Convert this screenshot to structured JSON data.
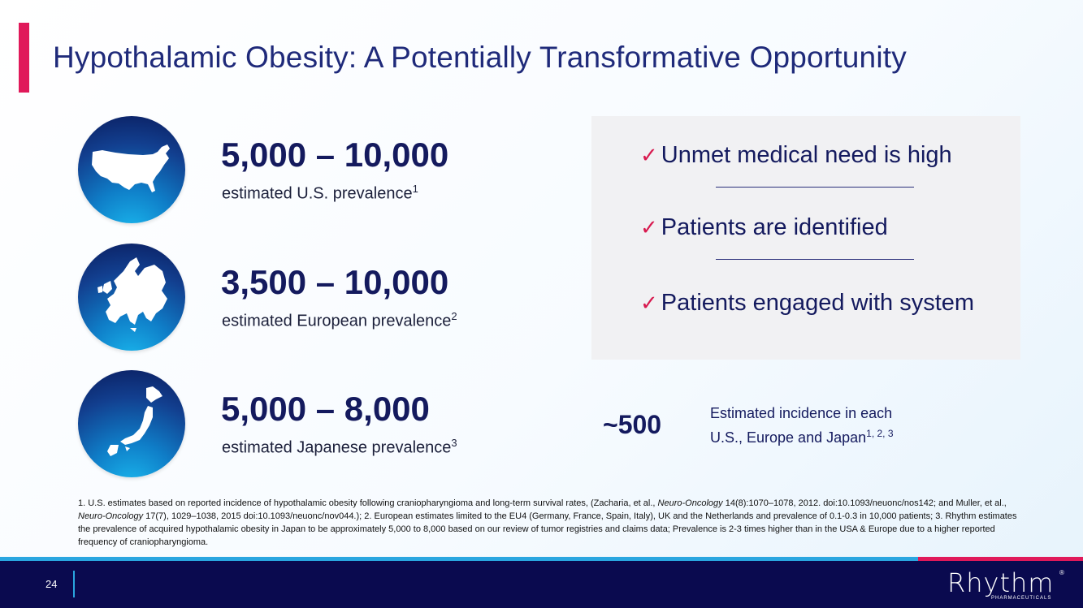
{
  "header": {
    "title": "Hypothalamic Obesity: A Potentially Transformative Opportunity"
  },
  "stats": [
    {
      "value": "5,000 – 10,000",
      "label": "estimated U.S. prevalence",
      "sup": "1",
      "icon": "us-map-icon"
    },
    {
      "value": "3,500 – 10,000",
      "label": "estimated European prevalence",
      "sup": "2",
      "icon": "europe-map-icon"
    },
    {
      "value": "5,000 – 8,000",
      "label": "estimated Japanese prevalence",
      "sup": "3",
      "icon": "japan-map-icon"
    }
  ],
  "checklist": {
    "check_symbol": "✓",
    "items": [
      "Unmet medical need is high",
      "Patients are identified",
      "Patients engaged with system"
    ]
  },
  "incidence": {
    "value": "~500",
    "label_line1": "Estimated incidence in each",
    "label_line2": "U.S., Europe and Japan",
    "sup": "1, 2, 3"
  },
  "footnote": {
    "part1": "1. U.S. estimates based on reported incidence of hypothalamic obesity following craniopharyngioma and long-term survival rates, (Zacharia, et al.,",
    "journal1": "Neuro-Oncology",
    "part2": "14(8):1070–1078, 2012. doi:10.1093/neuonc/nos142; and Muller, et al.,",
    "journal2": "Neuro-Oncology",
    "part3": "17(7), 1029–1038, 2015 doi:10.1093/neuonc/nov044.); 2. European estimates limited to the EU4 (Germany, France, Spain, Italy), UK and the Netherlands and prevalence of 0.1-0.3 in 10,000 patients; 3. Rhythm estimates the prevalence of acquired hypothalamic obesity in Japan to be approximately 5,000 to 8,000 based on our review of tumor registries and claims data; Prevalence is 2-3 times higher than in the USA & Europe due to a higher reported frequency of craniopharyngioma."
  },
  "footer": {
    "page_number": "24",
    "logo_text": "Rhythm",
    "logo_sub": "PHARMACEUTICALS",
    "logo_reg": "®"
  },
  "colors": {
    "accent": "#e0195a",
    "navy": "#141a5e",
    "footer_bg": "#0a0a4f",
    "stripe_blue": "#2aa6e0"
  }
}
